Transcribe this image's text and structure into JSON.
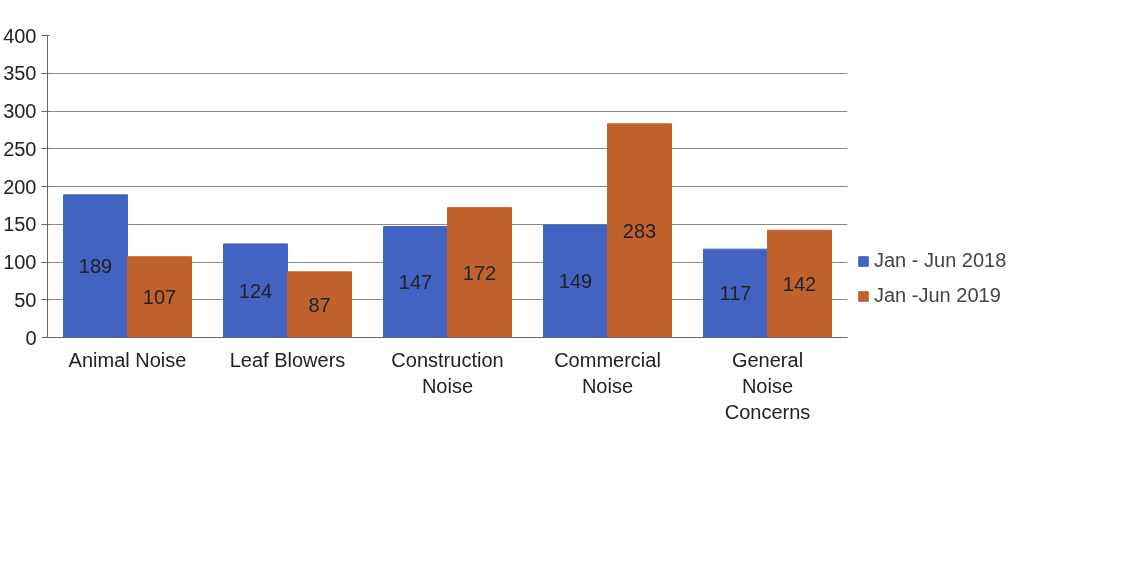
{
  "chart_data": {
    "type": "bar",
    "categories": [
      "Animal Noise",
      "Leaf Blowers",
      "Construction Noise",
      "Commercial Noise",
      "General Noise Concerns"
    ],
    "series": [
      {
        "name": "Jan - Jun 2018",
        "color": "#4263c2",
        "values": [
          189,
          124,
          147,
          149,
          117
        ]
      },
      {
        "name": "Jan -Jun 2019",
        "color": "#c0622d",
        "values": [
          107,
          87,
          172,
          283,
          142
        ]
      }
    ],
    "ylim": [
      0,
      400
    ],
    "yticks": [
      0,
      50,
      100,
      150,
      200,
      250,
      300,
      350,
      400
    ],
    "grid": "y",
    "legend": "right",
    "data_labels": true
  }
}
